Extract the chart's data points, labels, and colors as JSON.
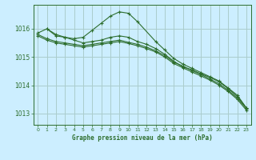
{
  "background_color": "#cceeff",
  "line_color": "#2d6e2d",
  "grid_color": "#aacccc",
  "title": "Graphe pression niveau de la mer (hPa)",
  "xlim": [
    -0.5,
    23.5
  ],
  "ylim": [
    1012.6,
    1016.85
  ],
  "yticks": [
    1013,
    1014,
    1015,
    1016
  ],
  "xticks": [
    0,
    1,
    2,
    3,
    4,
    5,
    6,
    7,
    8,
    9,
    10,
    11,
    12,
    13,
    14,
    15,
    16,
    17,
    18,
    19,
    20,
    21,
    22,
    23
  ],
  "series": [
    {
      "x": [
        0,
        1,
        2,
        3,
        4,
        5,
        6,
        7,
        8,
        9,
        10,
        11,
        13,
        14,
        15,
        16,
        17,
        18,
        19,
        20,
        21,
        22,
        23
      ],
      "y": [
        1015.85,
        1016.0,
        1015.75,
        1015.7,
        1015.65,
        1015.7,
        1015.95,
        1016.2,
        1016.45,
        1016.6,
        1016.55,
        1016.25,
        1015.55,
        1015.25,
        1014.95,
        1014.75,
        1014.6,
        1014.45,
        1014.3,
        1014.15,
        1013.9,
        1013.65,
        1013.2
      ]
    },
    {
      "x": [
        1,
        2,
        3,
        4,
        5,
        6,
        7,
        8,
        9,
        10,
        11,
        12,
        13,
        14,
        15,
        16,
        17,
        18,
        19,
        20,
        21,
        22,
        23
      ],
      "y": [
        1016.0,
        1015.8,
        1015.7,
        1015.6,
        1015.5,
        1015.55,
        1015.6,
        1015.7,
        1015.75,
        1015.7,
        1015.55,
        1015.45,
        1015.3,
        1015.1,
        1014.85,
        1014.65,
        1014.55,
        1014.4,
        1014.28,
        1014.12,
        1013.88,
        1013.6,
        1013.2
      ]
    },
    {
      "x": [
        0,
        1,
        2,
        3,
        4,
        5,
        6,
        7,
        8,
        9,
        10,
        11,
        12,
        13,
        14,
        15,
        16,
        17,
        18,
        19,
        20,
        21,
        22,
        23
      ],
      "y": [
        1015.8,
        1015.65,
        1015.55,
        1015.5,
        1015.45,
        1015.4,
        1015.45,
        1015.5,
        1015.55,
        1015.6,
        1015.52,
        1015.45,
        1015.35,
        1015.22,
        1015.05,
        1014.82,
        1014.68,
        1014.52,
        1014.38,
        1014.22,
        1014.05,
        1013.82,
        1013.55,
        1013.18
      ]
    },
    {
      "x": [
        0,
        1,
        2,
        3,
        4,
        5,
        6,
        7,
        8,
        9,
        10,
        11,
        12,
        13,
        14,
        15,
        16,
        17,
        18,
        19,
        20,
        21,
        22,
        23
      ],
      "y": [
        1015.75,
        1015.6,
        1015.5,
        1015.45,
        1015.4,
        1015.35,
        1015.4,
        1015.45,
        1015.5,
        1015.55,
        1015.48,
        1015.4,
        1015.3,
        1015.18,
        1015.0,
        1014.77,
        1014.62,
        1014.47,
        1014.33,
        1014.18,
        1014.0,
        1013.78,
        1013.5,
        1013.12
      ]
    }
  ]
}
